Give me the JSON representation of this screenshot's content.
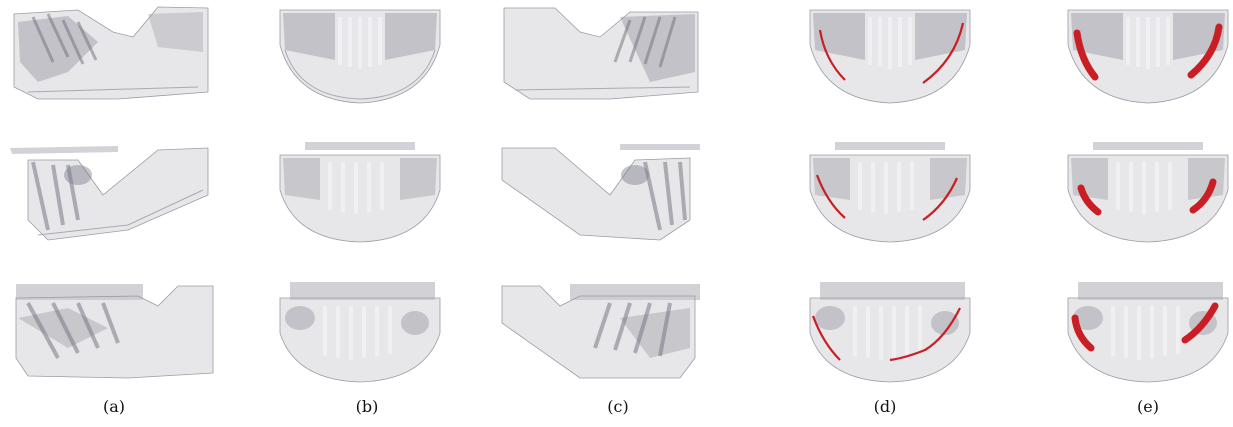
{
  "figure": {
    "captions": [
      "(a)",
      "(b)",
      "(c)",
      "(d)",
      "(e)"
    ],
    "canal_color": "#c81e24",
    "rows": 3,
    "columns": [
      {
        "label": "(a)",
        "view": "lateral-left",
        "canal": "none"
      },
      {
        "label": "(b)",
        "view": "frontal",
        "canal": "none"
      },
      {
        "label": "(c)",
        "view": "lateral-right",
        "canal": "none"
      },
      {
        "label": "(d)",
        "view": "frontal",
        "canal": "thin-curve"
      },
      {
        "label": "(e)",
        "view": "frontal",
        "canal": "thick-volume"
      }
    ]
  }
}
